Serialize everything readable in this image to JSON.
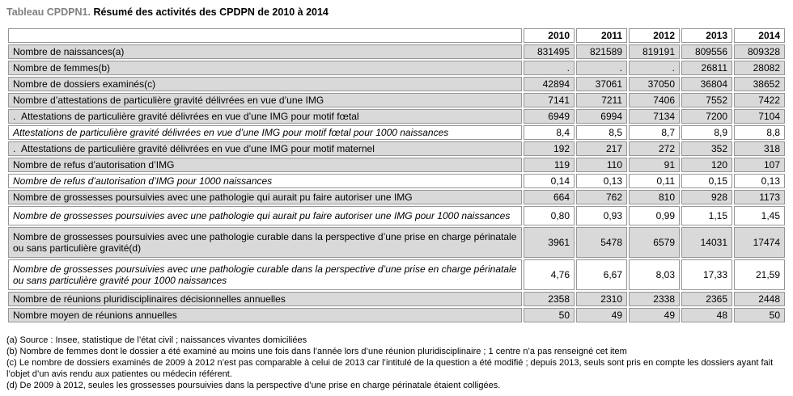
{
  "title": {
    "prefix": "Tableau CPDPN1.",
    "main": "Résumé des activités des CPDPN de 2010 à 2014"
  },
  "table": {
    "corner_label": "",
    "years": [
      "2010",
      "2011",
      "2012",
      "2013",
      "2014"
    ],
    "rows": [
      {
        "label": "Nombre de naissances(a)",
        "style": "gray",
        "values": [
          "831495",
          "821589",
          "819191",
          "809556",
          "809328"
        ]
      },
      {
        "label": "Nombre de femmes(b)",
        "style": "gray",
        "values": [
          ".",
          ".",
          ".",
          "26811",
          "28082"
        ]
      },
      {
        "label": "Nombre de dossiers examinés(c)",
        "style": "gray",
        "values": [
          "42894",
          "37061",
          "37050",
          "36804",
          "38652"
        ]
      },
      {
        "label": "Nombre d’attestations de particulière gravité délivrées en vue d’une IMG",
        "style": "gray",
        "values": [
          "7141",
          "7211",
          "7406",
          "7552",
          "7422"
        ]
      },
      {
        "label": ".  Attestations de particulière gravité délivrées en vue d’une IMG pour motif fœtal",
        "style": "gray",
        "values": [
          "6949",
          "6994",
          "7134",
          "7200",
          "7104"
        ]
      },
      {
        "label": "Attestations de particulière gravité délivrées en vue d’une IMG pour motif fœtal pour 1000 naissances",
        "style": "italic",
        "values": [
          "8,4",
          "8,5",
          "8,7",
          "8,9",
          "8,8"
        ]
      },
      {
        "label": ".  Attestations de particulière gravité délivrées en vue d’une IMG pour motif maternel",
        "style": "gray",
        "values": [
          "192",
          "217",
          "272",
          "352",
          "318"
        ]
      },
      {
        "label": "Nombre de refus d’autorisation d’IMG",
        "style": "gray",
        "values": [
          "119",
          "110",
          "91",
          "120",
          "107"
        ]
      },
      {
        "label": "Nombre de refus d’autorisation d’IMG pour 1000 naissances",
        "style": "italic",
        "values": [
          "0,14",
          "0,13",
          "0,11",
          "0,15",
          "0,13"
        ]
      },
      {
        "label": "Nombre de grossesses poursuivies avec une pathologie qui aurait pu faire autoriser une IMG",
        "style": "gray",
        "values": [
          "664",
          "762",
          "810",
          "928",
          "1173"
        ]
      },
      {
        "label": "Nombre de grossesses poursuivies avec une pathologie qui aurait pu faire autoriser une IMG pour 1000 naissances",
        "style": "italic tall",
        "values": [
          "0,80",
          "0,93",
          "0,99",
          "1,15",
          "1,45"
        ]
      },
      {
        "label": "Nombre de grossesses poursuivies avec une pathologie curable dans la perspective d’une prise en charge périnatale ou sans particulière gravité(d)",
        "style": "gray tall",
        "values": [
          "3961",
          "5478",
          "6579",
          "14031",
          "17474"
        ]
      },
      {
        "label": "Nombre de grossesses poursuivies avec une pathologie curable dans la perspective d’une prise en charge périnatale ou sans particulière gravité pour 1000 naissances",
        "style": "italic tall",
        "values": [
          "4,76",
          "6,67",
          "8,03",
          "17,33",
          "21,59"
        ]
      },
      {
        "label": "Nombre de réunions pluridisciplinaires décisionnelles annuelles",
        "style": "gray",
        "values": [
          "2358",
          "2310",
          "2338",
          "2365",
          "2448"
        ]
      },
      {
        "label": "Nombre moyen de réunions annuelles",
        "style": "gray",
        "values": [
          "50",
          "49",
          "49",
          "48",
          "50"
        ]
      }
    ]
  },
  "footnotes": [
    "(a) Source : Insee, statistique de l’état civil ; naissances vivantes domiciliées",
    "(b) Nombre de femmes dont le dossier a été examiné au moins une fois dans l’année lors d’une réunion pluridisciplinaire ; 1 centre n’a pas renseigné cet item",
    "(c) Le nombre de dossiers examinés de 2009 à 2012 n’est pas comparable à celui de 2013 car l’intitulé de la question a été modifié ; depuis 2013, seuls sont pris en compte les dossiers ayant fait l’objet d’un avis rendu aux patientes ou médecin référent.",
    "(d) De 2009 à 2012, seules les grossesses poursuivies dans la perspective d’une prise en charge périnatale étaient colligées."
  ],
  "colors": {
    "row_gray": "#d9d9d9",
    "cell_border": "#969696",
    "title_prefix": "#808080"
  }
}
